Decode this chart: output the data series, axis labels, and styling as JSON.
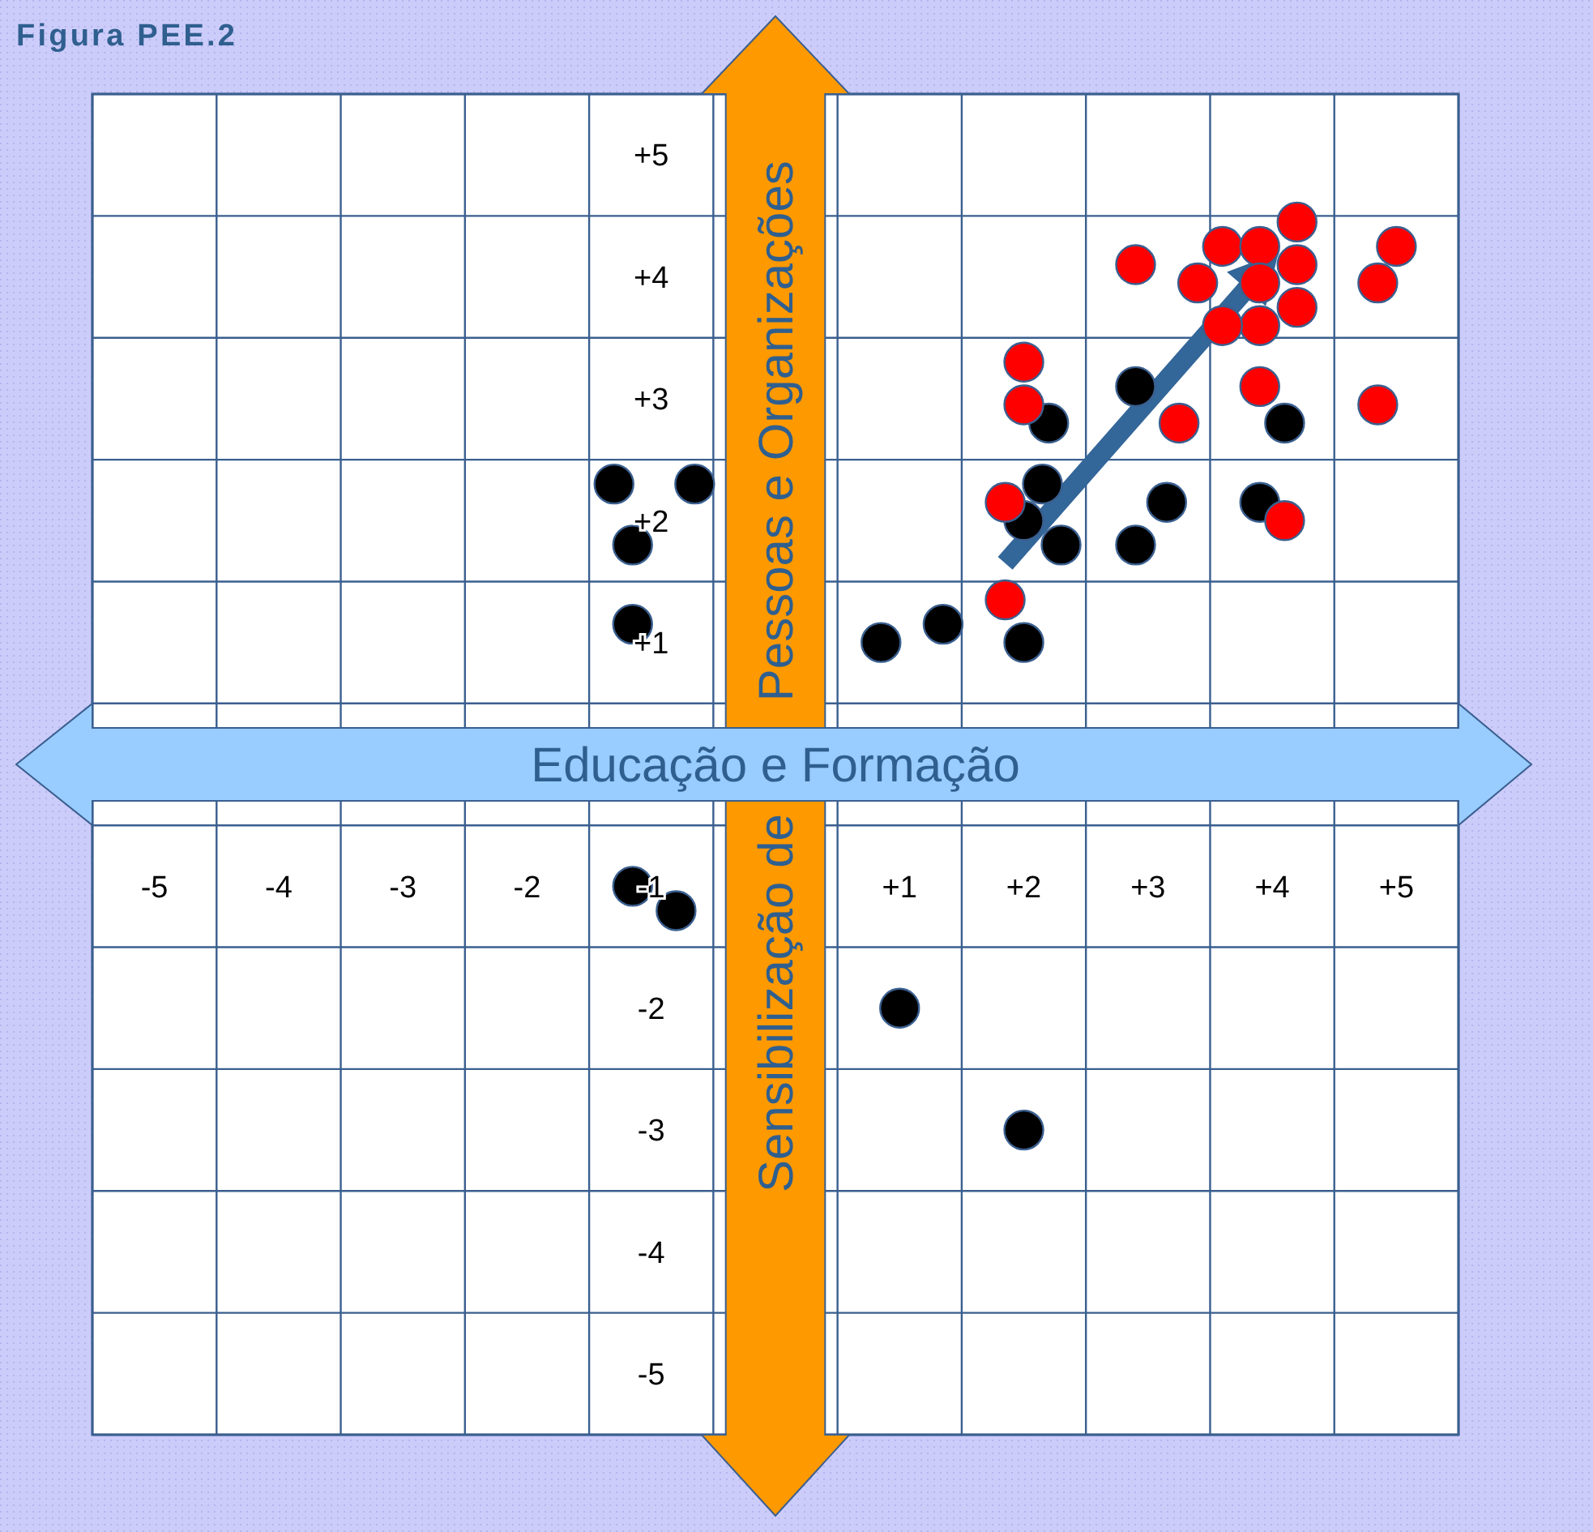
{
  "chart_data": {
    "type": "scatter",
    "title": "Figura PEE.2",
    "xlabel": "Educação e Formação",
    "ylabel": "Sensibilização de Pessoas e Organizações",
    "xlim": [
      -5.5,
      5.5
    ],
    "ylim": [
      -5.5,
      5.5
    ],
    "xticks": [
      {
        "value": -5.5,
        "label": null
      },
      {
        "value": -4.5,
        "label": null
      },
      {
        "value": -3.5,
        "label": null
      },
      {
        "value": -2.5,
        "label": null
      },
      {
        "value": -1.5,
        "label": null
      },
      {
        "value": -0.5,
        "label": null
      },
      {
        "value": 0.5,
        "label": null
      },
      {
        "value": 1.5,
        "label": null
      },
      {
        "value": 2.5,
        "label": null
      },
      {
        "value": 3.5,
        "label": null
      },
      {
        "value": 4.5,
        "label": null
      },
      {
        "value": 5.5,
        "label": null
      },
      {
        "value": -5,
        "label": "-5"
      },
      {
        "value": -4,
        "label": "-4"
      },
      {
        "value": -3,
        "label": "-3"
      },
      {
        "value": -2,
        "label": "-2"
      },
      {
        "value": -1,
        "label": "-1"
      },
      {
        "value": 1,
        "label": "+1"
      },
      {
        "value": 2,
        "label": "+2"
      },
      {
        "value": 3,
        "label": "+3"
      },
      {
        "value": 4,
        "label": "+4"
      },
      {
        "value": 5,
        "label": "+5"
      }
    ],
    "yticks": [
      {
        "value": -5.5,
        "label": null
      },
      {
        "value": -4.5,
        "label": null
      },
      {
        "value": -3.5,
        "label": null
      },
      {
        "value": -2.5,
        "label": null
      },
      {
        "value": -1.5,
        "label": null
      },
      {
        "value": -0.5,
        "label": null
      },
      {
        "value": 0.5,
        "label": null
      },
      {
        "value": 1.5,
        "label": null
      },
      {
        "value": 2.5,
        "label": null
      },
      {
        "value": 3.5,
        "label": null
      },
      {
        "value": 4.5,
        "label": null
      },
      {
        "value": 5.5,
        "label": null
      },
      {
        "value": -5,
        "label": "-5"
      },
      {
        "value": -4,
        "label": "-4"
      },
      {
        "value": -3,
        "label": "-3"
      },
      {
        "value": -2,
        "label": "-2"
      },
      {
        "value": 1,
        "label": "+1"
      },
      {
        "value": 2,
        "label": "+2"
      },
      {
        "value": 3,
        "label": "+3"
      },
      {
        "value": 4,
        "label": "+4"
      },
      {
        "value": 5,
        "label": "+5"
      }
    ],
    "grid": true,
    "marker": "circle",
    "series": [
      {
        "color": "#000000",
        "x": [
          -1.3,
          -0.65,
          -1.15,
          -1.15,
          0.85,
          1.35,
          2.0,
          2.2,
          2.15,
          2.0,
          2.3,
          2.9,
          3.15,
          2.9,
          3.9,
          4.1,
          -1.15,
          -0.8,
          1.0,
          2.0
        ],
        "values": [
          2.3,
          2.3,
          1.8,
          1.15,
          1.0,
          1.15,
          1.0,
          2.8,
          2.3,
          2.0,
          1.8,
          3.1,
          2.15,
          1.8,
          2.15,
          2.8,
          -1.0,
          -1.2,
          -2.0,
          -3.0
        ]
      },
      {
        "color": "#ff0000",
        "x": [
          2.0,
          2.0,
          1.85,
          1.85,
          2.9,
          3.4,
          3.6,
          3.9,
          4.2,
          4.2,
          3.9,
          4.2,
          3.9,
          3.6,
          3.9,
          3.25,
          4.1,
          5.0,
          4.85,
          4.85
        ],
        "values": [
          3.3,
          2.95,
          2.15,
          1.35,
          4.1,
          3.95,
          4.25,
          4.25,
          4.45,
          4.1,
          3.95,
          3.75,
          3.6,
          3.6,
          3.1,
          2.8,
          2.0,
          4.25,
          3.95,
          2.95
        ]
      }
    ]
  }
}
